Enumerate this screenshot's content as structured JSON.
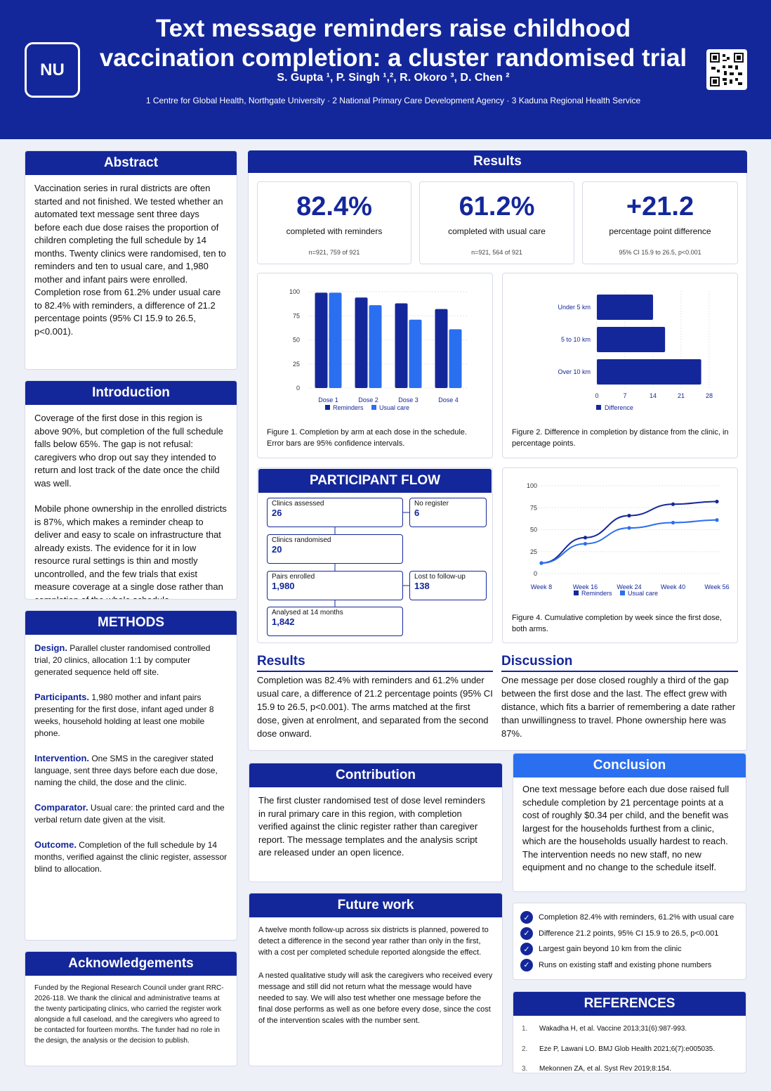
{
  "header": {
    "logo": "NU",
    "title_line1": "Text message reminders raise childhood",
    "title_line2": "vaccination completion: a cluster randomised trial",
    "authors": "S. Gupta ¹, P. Singh ¹,², R. Okoro ³, D. Chen ²",
    "affiliations": "1 Centre for Global Health, Northgate University · 2 National Primary Care Development Agency · 3 Kaduna Regional Health Service"
  },
  "abstract": {
    "title": "Abstract",
    "text": "Vaccination series in rural districts are often started and not finished. We tested whether an automated text message sent three days before each due dose raises the proportion of children completing the full schedule by 14 months. Twenty clinics were randomised, ten to reminders and ten to usual care, and 1,980 mother and infant pairs were enrolled. Completion rose from 61.2% under usual care to 82.4% with reminders, a difference of 21.2 percentage points (95% CI 15.9 to 26.5, p<0.001)."
  },
  "introduction": {
    "title": "Introduction",
    "p1": "Coverage of the first dose in this region is above 90%, but completion of the full schedule falls below 65%. The gap is not refusal: caregivers who drop out say they intended to return and lost track of the date once the child was well.",
    "p2": "Mobile phone ownership in the enrolled districts is 87%, which makes a reminder cheap to deliver and easy to scale on infrastructure that already exists. The evidence for it in low resource rural settings is thin and mostly uncontrolled, and the few trials that exist measure coverage at a single dose rather than completion of the whole schedule."
  },
  "methods": {
    "title": "METHODS",
    "design_label": "Design.",
    "design": " Parallel cluster randomised controlled trial, 20 clinics, allocation 1:1 by computer generated sequence held off site.",
    "participants_label": "Participants.",
    "participants": " 1,980 mother and infant pairs presenting for the first dose, infant aged under 8 weeks, household holding at least one mobile phone.",
    "intervention_label": "Intervention.",
    "intervention": " One SMS in the caregiver stated language, sent three days before each due dose, naming the child, the dose and the clinic.",
    "comparator_label": "Comparator.",
    "comparator": " Usual care: the printed card and the verbal return date given at the visit.",
    "outcome_label": "Outcome.",
    "outcome": " Completion of the full schedule by 14 months, verified against the clinic register, assessor blind to allocation."
  },
  "acknowledgements": {
    "title": "Acknowledgements",
    "text": "Funded by the Regional Research Council under grant RRC-2026-118. We thank the clinical and administrative teams at the twenty participating clinics, who carried the register work alongside a full caseload, and the caregivers who agreed to be contacted for fourteen months. The funder had no role in the design, the analysis or the decision to publish."
  },
  "results": {
    "title": "Results",
    "stats": [
      {
        "value": "82.4%",
        "label": "completed with reminders",
        "sub": "n=921, 759 of 921"
      },
      {
        "value": "61.2%",
        "label": "completed with usual care",
        "sub": "n=921, 564 of 921"
      },
      {
        "value": "+21.2",
        "label": "percentage point difference",
        "sub": "95% CI 15.9 to 26.5, p<0.001"
      }
    ],
    "fig1_caption": "Figure 1. Completion by arm at each dose in the schedule. Error bars are 95% confidence intervals.",
    "fig2_caption": "Figure 2. Difference in completion by distance from the clinic, in percentage points.",
    "fig4_caption": "Figure 4. Cumulative completion by week since the first dose, both arms.",
    "results_heading": "Results",
    "results_text": "Completion was 82.4% with reminders and 61.2% under usual care, a difference of 21.2 percentage points (95% CI 15.9 to 26.5, p<0.001). The arms matched at the first dose, given at enrolment, and separated from the second dose onward.",
    "discussion_heading": "Discussion",
    "discussion_text": "One message per dose closed roughly a third of the gap between the first dose and the last. The effect grew with distance, which fits a barrier of remembering a date rather than unwillingness to travel. Phone ownership here was 87%."
  },
  "flow": {
    "title": "PARTICIPANT FLOW",
    "assessed_label": "Clinics assessed",
    "assessed": "26",
    "noreg_label": "No register",
    "noreg": "6",
    "randomised_label": "Clinics randomised",
    "randomised": "20",
    "enrolled_label": "Pairs enrolled",
    "enrolled": "1,980",
    "lost_label": "Lost to follow-up",
    "lost": "138",
    "analysed_label": "Analysed at 14 months",
    "analysed": "1,842"
  },
  "contribution": {
    "title": "Contribution",
    "text": "The first cluster randomised test of dose level reminders in rural primary care in this region, with completion verified against the clinic register rather than caregiver report. The message templates and the analysis script are released under an open licence."
  },
  "future": {
    "title": "Future work",
    "p1": "A twelve month follow-up across six districts is planned, powered to detect a difference in the second year rather than only in the first, with a cost per completed schedule reported alongside the effect.",
    "p2": "A nested qualitative study will ask the caregivers who received every message and still did not return what the message would have needed to say. We will also test whether one message before the final dose performs as well as one before every dose, since the cost of the intervention scales with the number sent."
  },
  "conclusion": {
    "title": "Conclusion",
    "text": "One text message before each due dose raised full schedule completion by 21 percentage points at a cost of roughly $0.34 per child, and the benefit was largest for the households furthest from a clinic, which are the households usually hardest to reach. The intervention needs no new staff, no new equipment and no change to the schedule itself."
  },
  "takeaways": [
    "Completion 82.4% with reminders, 61.2% with usual care",
    "Difference 21.2 points, 95% CI 15.9 to 26.5, p<0.001",
    "Largest gain beyond 10 km from the clinic",
    "Runs on existing staff and existing phone numbers"
  ],
  "references": {
    "title": "REFERENCES",
    "items": [
      {
        "n": "1.",
        "text": "Wakadha H, et al. Vaccine 2013;31(6):987-993."
      },
      {
        "n": "2.",
        "text": "Eze P, Lawani LO. BMJ Glob Health 2021;6(7):e005035."
      },
      {
        "n": "3.",
        "text": "Mekonnen ZA, et al. Syst Rev 2019;8:154."
      }
    ]
  },
  "colors": {
    "primary": "#14279a",
    "secondary": "#2a6ff0"
  },
  "chart_data": [
    {
      "type": "bar",
      "categories": [
        "Dose 1",
        "Dose 2",
        "Dose 3",
        "Dose 4"
      ],
      "series": [
        {
          "name": "Reminders",
          "values": [
            99,
            94,
            88,
            82
          ]
        },
        {
          "name": "Usual care",
          "values": [
            99,
            86,
            71,
            61
          ]
        }
      ],
      "yticks": [
        "0",
        "25",
        "50",
        "75",
        "100"
      ],
      "ylim": [
        0,
        100
      ],
      "legend": "bottom"
    },
    {
      "type": "bar",
      "orientation": "horizontal",
      "categories": [
        "Under 5 km",
        "5 to 10 km",
        "Over 10 km"
      ],
      "series": [
        {
          "name": "Difference",
          "values": [
            14,
            17,
            26
          ]
        }
      ],
      "xticks": [
        "0",
        "7",
        "14",
        "21",
        "28"
      ],
      "xlim": [
        0,
        28
      ],
      "legend": "bottom"
    },
    {
      "type": "line",
      "categories": [
        "Week 8",
        "Week 16",
        "Week 24",
        "Week 40",
        "Week 56"
      ],
      "series": [
        {
          "name": "Reminders",
          "values": [
            12,
            41,
            66,
            79,
            82
          ]
        },
        {
          "name": "Usual care",
          "values": [
            12,
            34,
            52,
            58,
            61
          ]
        }
      ],
      "yticks": [
        "0",
        "25",
        "50",
        "75",
        "100"
      ],
      "ylim": [
        0,
        100
      ],
      "legend": "bottom"
    }
  ]
}
